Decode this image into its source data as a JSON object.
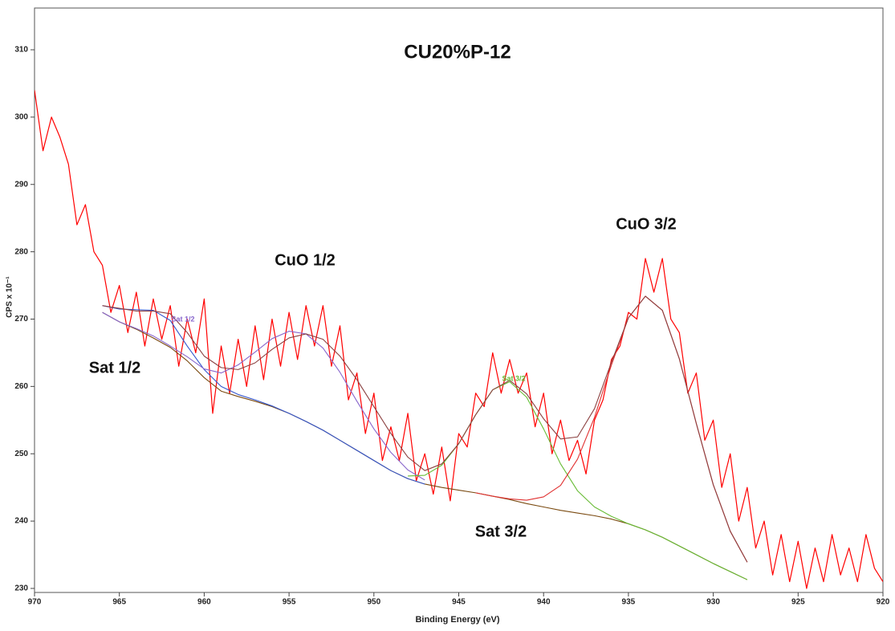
{
  "chart_data": {
    "type": "line",
    "title": "CU20%P-12",
    "x_label": "Binding Energy (eV)",
    "y_label": "CPS x 10⁻¹",
    "xlim": [
      970,
      920
    ],
    "ylim": [
      229.4,
      316.2
    ],
    "xticks": [
      970,
      965,
      960,
      955,
      950,
      945,
      940,
      935,
      930,
      925,
      920
    ],
    "yticks": [
      230,
      240,
      250,
      260,
      270,
      280,
      290,
      300,
      310
    ],
    "annotations": [
      "CuO 1/2",
      "CuO 3/2",
      "Sat 1/2",
      "Sat 3/2",
      "Sat 1/2",
      "Sat 3/2"
    ],
    "series": [
      {
        "color": "#ff0000",
        "x": [
          970,
          969.5,
          969,
          968.5,
          968,
          967.5,
          967,
          966.5,
          966,
          965.5,
          965,
          964.5,
          964,
          963.5,
          963,
          962.5,
          962,
          961.5,
          961,
          960.5,
          960,
          959.5,
          959,
          958.5,
          958,
          957.5,
          957,
          956.5,
          956,
          955.5,
          955,
          954.5,
          954,
          953.5,
          953,
          952.5,
          952,
          951.5,
          951,
          950.5,
          950,
          949.5,
          949,
          948.5,
          948,
          947.5,
          947,
          946.5,
          946,
          945.5,
          945,
          944.5,
          944,
          943.5,
          943,
          942.5,
          942,
          941.5,
          941,
          940.5,
          940,
          939.5,
          939,
          938.5,
          938,
          937.5,
          937,
          936.5,
          936,
          935.5,
          935,
          934.5,
          934,
          933.5,
          933,
          932.5,
          932,
          931.5,
          931,
          930.5,
          930,
          929.5,
          929,
          928.5,
          928,
          927.5,
          927,
          926.5,
          926,
          925.5,
          925,
          924.5,
          924,
          923.5,
          923,
          922.5,
          922,
          921.5,
          921,
          920.5,
          920
        ],
        "values": [
          304,
          295,
          300,
          297,
          293,
          284,
          287,
          280,
          278,
          271,
          275,
          268,
          274,
          266,
          273,
          267,
          272,
          263,
          270,
          265,
          273,
          256,
          266,
          259,
          267,
          260,
          269,
          261,
          270,
          263,
          271,
          264,
          272,
          266,
          272,
          263,
          269,
          258,
          262,
          253,
          259,
          249,
          254,
          249,
          256,
          246,
          250,
          244,
          251,
          243,
          253,
          251,
          259,
          257,
          265,
          259,
          264,
          259,
          262,
          254,
          259,
          250,
          255,
          249,
          252,
          247,
          255,
          258,
          264,
          266,
          271,
          270,
          279,
          274,
          279,
          270,
          268,
          259,
          262,
          252,
          255,
          245,
          250,
          240,
          245,
          236,
          240,
          232,
          238,
          231,
          237,
          230,
          236,
          231,
          238,
          232,
          236,
          231,
          238,
          233,
          231
        ]
      },
      {
        "color": "#7a4a10",
        "x": [
          966,
          965,
          964,
          963,
          962,
          961,
          960,
          959,
          958,
          957,
          956,
          955,
          954,
          953,
          952,
          951,
          950,
          949,
          948,
          947,
          946,
          945,
          944,
          943,
          942,
          941,
          940,
          939,
          938,
          937,
          936,
          935,
          934,
          933,
          932,
          931,
          930,
          929,
          928
        ],
        "values": [
          271,
          269.6,
          268.5,
          267.2,
          265.8,
          263.8,
          261.3,
          259.3,
          258.5,
          257.8,
          257,
          256,
          254.8,
          253.5,
          252,
          250.5,
          249,
          247.5,
          246.3,
          245.5,
          245,
          244.6,
          244.2,
          243.7,
          243.2,
          242.6,
          242.1,
          241.6,
          241.2,
          240.8,
          240.3,
          239.6,
          238.7,
          237.6,
          236.3,
          235,
          233.7,
          232.5,
          231.3
        ]
      },
      {
        "color": "#3355cc",
        "x": [
          966,
          965,
          964,
          963,
          962,
          961,
          960,
          959,
          958,
          957,
          956,
          955,
          954,
          953,
          952,
          951,
          950,
          949,
          948,
          947
        ],
        "values": [
          272,
          271.5,
          271.4,
          271.3,
          269.8,
          266,
          262.5,
          260,
          258.8,
          258,
          257.1,
          256,
          254.8,
          253.5,
          252,
          250.5,
          249,
          247.5,
          246.3,
          245.5
        ]
      },
      {
        "color": "#8866cc",
        "x": [
          966,
          965,
          964,
          963,
          962,
          961,
          960,
          959,
          958,
          957,
          956,
          955,
          954,
          953,
          952,
          951,
          950,
          949,
          948,
          947
        ],
        "values": [
          271,
          269.6,
          268.6,
          267.5,
          266,
          264.4,
          262.6,
          262,
          263.2,
          265.1,
          267.1,
          268.2,
          267.8,
          265.7,
          262.1,
          257.8,
          253.7,
          250.2,
          247.6,
          246.1
        ]
      },
      {
        "color": "#66bb33",
        "x": [
          948,
          947,
          946,
          945,
          944,
          943,
          942,
          941,
          940,
          939,
          938,
          937,
          936,
          935,
          934,
          933,
          932,
          931,
          930,
          929,
          928
        ],
        "values": [
          246.7,
          246.8,
          248.3,
          251.5,
          255.8,
          259.5,
          260.7,
          258.4,
          253.7,
          248.5,
          244.5,
          242.1,
          240.7,
          239.6,
          238.7,
          237.6,
          236.3,
          235,
          233.7,
          232.5,
          231.3
        ]
      },
      {
        "color": "#e03030",
        "x": [
          944,
          943,
          942,
          941,
          940,
          939,
          938,
          937,
          936,
          935,
          934,
          933,
          932,
          931,
          930,
          929,
          928
        ],
        "values": [
          244.2,
          243.7,
          243.3,
          243.1,
          243.6,
          245.3,
          249.2,
          255.4,
          263.2,
          270.2,
          273.4,
          271.3,
          264.1,
          254.5,
          245.4,
          238.5,
          233.9
        ]
      },
      {
        "color": "#8b4040",
        "x": [
          966,
          965,
          964,
          963,
          962,
          961,
          960,
          959,
          958,
          957,
          956,
          955,
          954,
          953,
          952,
          951,
          950,
          949,
          948,
          947,
          946,
          945,
          944,
          943,
          942,
          941,
          940,
          939,
          938,
          937,
          936,
          935,
          934,
          933,
          932,
          931,
          930,
          929,
          928
        ],
        "values": [
          272,
          271.6,
          271.2,
          271.2,
          270.8,
          268,
          264.5,
          262.8,
          262.5,
          263.5,
          265.5,
          267.2,
          267.8,
          267,
          264.5,
          261,
          257,
          253,
          249.5,
          247.5,
          248.5,
          251.5,
          255.8,
          259.5,
          260.9,
          258.9,
          255.2,
          252.2,
          252.5,
          256.7,
          263.6,
          270.2,
          273.4,
          271.3,
          264.1,
          254.5,
          245.4,
          238.5,
          233.9
        ]
      }
    ]
  }
}
